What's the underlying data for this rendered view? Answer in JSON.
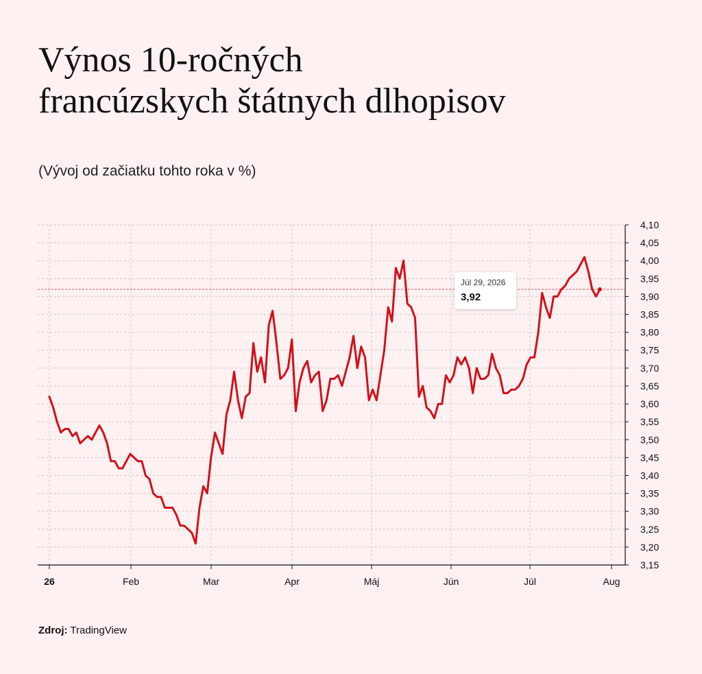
{
  "title_line1": "Výnos 10-ročných",
  "title_line2": "francúzskych štátnych dlhopisov",
  "subtitle": "(Vývoj od začiatku tohto roka v %)",
  "source_label": "Zdroj:",
  "source_value": "TradingView",
  "tooltip": {
    "date": "Júl 29, 2026",
    "value": "3,92"
  },
  "colors": {
    "line": "#d0101a",
    "background": "#fdf1f1",
    "grid": "#cfc6c6"
  },
  "chart_data": {
    "type": "line",
    "title": "Výnos 10-ročných francúzskych štátnych dlhopisov",
    "subtitle": "(Vývoj od začiatku tohto roka v %)",
    "ylim": [
      3.15,
      4.1
    ],
    "y_ticks": [
      "4,10",
      "4,05",
      "4,00",
      "3,95",
      "3,90",
      "3,85",
      "3,80",
      "3,75",
      "3,70",
      "3,65",
      "3,60",
      "3,55",
      "3,50",
      "3,45",
      "3,40",
      "3,35",
      "3,30",
      "3,25",
      "3,20",
      "3,15"
    ],
    "y_axis_position": "right",
    "x_ticks": [
      "26",
      "Feb",
      "Mar",
      "Apr",
      "Máj",
      "Jún",
      "Júl",
      "Aug"
    ],
    "grid": true,
    "last_value_line": 3.92,
    "series": [
      {
        "values": [
          3.62,
          3.59,
          3.55,
          3.52,
          3.53,
          3.53,
          3.51,
          3.52,
          3.49,
          3.5,
          3.51,
          3.5,
          3.52,
          3.54,
          3.52,
          3.49,
          3.44,
          3.44,
          3.42,
          3.42,
          3.44,
          3.46,
          3.45,
          3.44,
          3.44,
          3.4,
          3.39,
          3.35,
          3.34,
          3.34,
          3.31,
          3.31,
          3.31,
          3.29,
          3.26,
          3.26,
          3.25,
          3.24,
          3.21,
          3.31,
          3.37,
          3.35,
          3.45,
          3.52,
          3.49,
          3.46,
          3.57,
          3.61,
          3.69,
          3.61,
          3.56,
          3.62,
          3.63,
          3.77,
          3.69,
          3.73,
          3.66,
          3.82,
          3.86,
          3.77,
          3.67,
          3.68,
          3.7,
          3.78,
          3.58,
          3.66,
          3.7,
          3.72,
          3.66,
          3.68,
          3.69,
          3.58,
          3.61,
          3.67,
          3.67,
          3.68,
          3.65,
          3.69,
          3.73,
          3.79,
          3.7,
          3.76,
          3.73,
          3.61,
          3.64,
          3.61,
          3.68,
          3.75,
          3.87,
          3.83,
          3.98,
          3.95,
          4.0,
          3.88,
          3.87,
          3.84,
          3.62,
          3.65,
          3.59,
          3.58,
          3.56,
          3.6,
          3.6,
          3.68,
          3.66,
          3.68,
          3.73,
          3.71,
          3.73,
          3.7,
          3.63,
          3.7,
          3.67,
          3.67,
          3.68,
          3.74,
          3.7,
          3.68,
          3.63,
          3.63,
          3.64,
          3.64,
          3.65,
          3.67,
          3.71,
          3.73,
          3.73,
          3.8,
          3.91,
          3.87,
          3.84,
          3.9,
          3.9,
          3.92,
          3.93,
          3.95,
          3.96,
          3.97,
          3.99,
          4.01,
          3.97,
          3.92,
          3.9,
          3.92
        ]
      }
    ]
  }
}
